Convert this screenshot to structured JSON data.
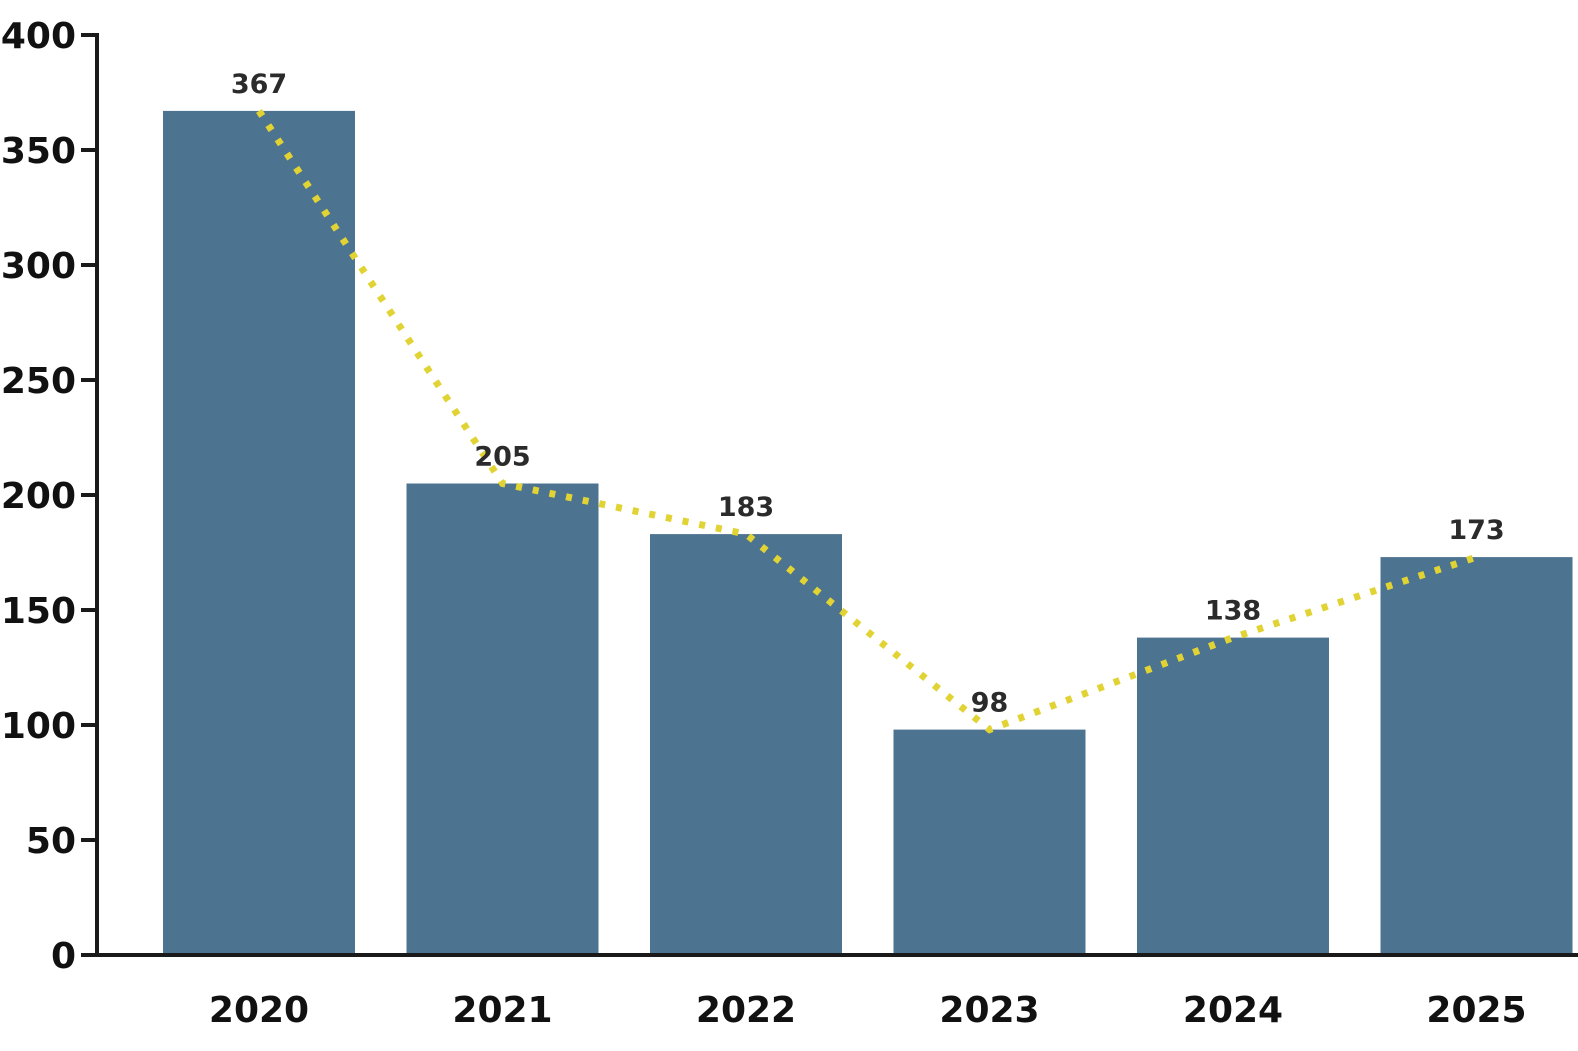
{
  "figure": {
    "background": "#ffffff",
    "title": ""
  },
  "chart_data": {
    "type": "bar",
    "categories": [
      "2020",
      "2021",
      "2022",
      "2023",
      "2024",
      "2025"
    ],
    "values": [
      367,
      205,
      183,
      98,
      138,
      173
    ],
    "bar_value_labels": [
      "367",
      "205",
      "183",
      "98",
      "138",
      "173"
    ],
    "series": [
      {
        "name": "trend-line",
        "type": "line",
        "style": "dotted",
        "values": [
          367,
          205,
          183,
          98,
          138,
          173
        ]
      }
    ],
    "title": "",
    "xlabel": "",
    "ylabel": "",
    "ylim": [
      0,
      400
    ],
    "yticks": [
      0,
      50,
      100,
      150,
      200,
      250,
      300,
      350,
      400
    ],
    "grid": false,
    "legend_visible": false,
    "colors": {
      "bar": "#4c7390",
      "line": "#e1d334",
      "axis": "#1a1a1a",
      "tick_label": "#111111",
      "value_label": "#2b2b2b",
      "background": "#ffffff"
    }
  }
}
